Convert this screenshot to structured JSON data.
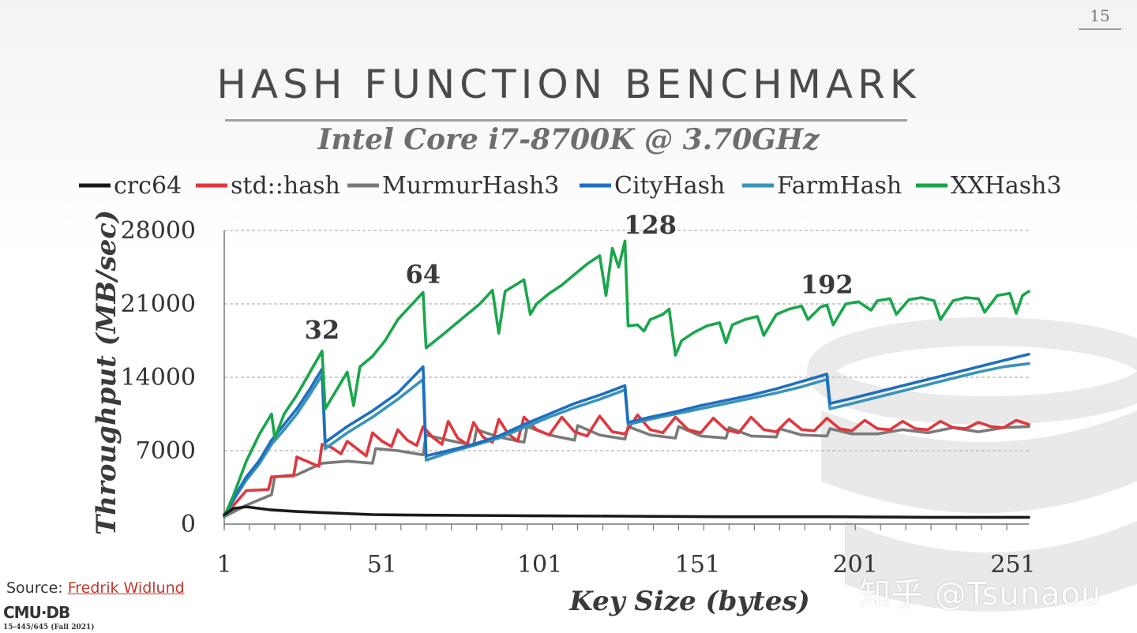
{
  "slide": {
    "page_number": "15",
    "title": "HASH FUNCTION BENCHMARK",
    "subtitle": "Intel Core i7-8700K @ 3.70GHz",
    "source_label": "Source:",
    "source_link": "Fredrik Widlund",
    "logo": "CMU·DB",
    "course": "15-445/645 (Fall 2021)",
    "watermark": "知乎 @Tsunaou"
  },
  "colors": {
    "crc64": "#1a1a1a",
    "std::hash": "#e0383e",
    "MurmurHash3": "#7a7a7a",
    "CityHash": "#1f6fc0",
    "FarmHash": "#3a93b8",
    "XXHash3": "#1aa64b"
  },
  "chart_data": {
    "type": "line",
    "title": "Intel Core i7-8700K @ 3.70GHz",
    "xlabel": "Key Size (bytes)",
    "ylabel": "Throughput (MB/sec)",
    "xlim": [
      1,
      256
    ],
    "ylim": [
      0,
      28000
    ],
    "xticks": [
      1,
      51,
      101,
      151,
      201,
      251
    ],
    "yticks": [
      0,
      7000,
      14000,
      21000,
      28000
    ],
    "legend_position": "top",
    "grid": "horizontal dashed",
    "annotations": [
      {
        "label": "32",
        "x": 32,
        "y": 16500
      },
      {
        "label": "64",
        "x": 64,
        "y": 21800
      },
      {
        "label": "128",
        "x": 136,
        "y": 26500
      },
      {
        "label": "192",
        "x": 192,
        "y": 20800
      }
    ],
    "series": [
      {
        "name": "crc64",
        "points": [
          [
            1,
            900
          ],
          [
            4,
            1500
          ],
          [
            8,
            1650
          ],
          [
            16,
            1350
          ],
          [
            24,
            1200
          ],
          [
            32,
            1100
          ],
          [
            48,
            900
          ],
          [
            64,
            850
          ],
          [
            96,
            800
          ],
          [
            128,
            750
          ],
          [
            160,
            700
          ],
          [
            192,
            700
          ],
          [
            224,
            650
          ],
          [
            256,
            650
          ]
        ]
      },
      {
        "name": "std::hash",
        "points": [
          [
            1,
            800
          ],
          [
            4,
            1800
          ],
          [
            8,
            3200
          ],
          [
            15,
            3300
          ],
          [
            16,
            4500
          ],
          [
            23,
            4600
          ],
          [
            24,
            6400
          ],
          [
            31,
            5500
          ],
          [
            32,
            7600
          ],
          [
            35,
            7300
          ],
          [
            38,
            6700
          ],
          [
            40,
            7900
          ],
          [
            43,
            7200
          ],
          [
            46,
            6500
          ],
          [
            48,
            8700
          ],
          [
            51,
            7900
          ],
          [
            54,
            7400
          ],
          [
            56,
            9000
          ],
          [
            59,
            8000
          ],
          [
            62,
            7500
          ],
          [
            64,
            9300
          ],
          [
            67,
            8300
          ],
          [
            70,
            7600
          ],
          [
            72,
            9800
          ],
          [
            75,
            8200
          ],
          [
            78,
            7600
          ],
          [
            80,
            9700
          ],
          [
            83,
            8300
          ],
          [
            86,
            7800
          ],
          [
            88,
            10000
          ],
          [
            91,
            8600
          ],
          [
            94,
            7900
          ],
          [
            96,
            10200
          ],
          [
            100,
            9000
          ],
          [
            104,
            8500
          ],
          [
            108,
            10200
          ],
          [
            112,
            8800
          ],
          [
            116,
            8400
          ],
          [
            120,
            10300
          ],
          [
            124,
            8800
          ],
          [
            128,
            8600
          ],
          [
            132,
            10400
          ],
          [
            136,
            9000
          ],
          [
            140,
            8700
          ],
          [
            144,
            10200
          ],
          [
            148,
            9000
          ],
          [
            152,
            8700
          ],
          [
            156,
            10100
          ],
          [
            160,
            9000
          ],
          [
            164,
            8700
          ],
          [
            168,
            10200
          ],
          [
            172,
            9000
          ],
          [
            176,
            8800
          ],
          [
            180,
            10000
          ],
          [
            184,
            9000
          ],
          [
            188,
            8900
          ],
          [
            192,
            10100
          ],
          [
            196,
            9100
          ],
          [
            200,
            8900
          ],
          [
            204,
            9900
          ],
          [
            208,
            9100
          ],
          [
            212,
            9000
          ],
          [
            216,
            9800
          ],
          [
            220,
            9100
          ],
          [
            224,
            9000
          ],
          [
            228,
            9800
          ],
          [
            232,
            9200
          ],
          [
            236,
            9100
          ],
          [
            240,
            9700
          ],
          [
            244,
            9300
          ],
          [
            248,
            9200
          ],
          [
            252,
            9900
          ],
          [
            256,
            9500
          ]
        ]
      },
      {
        "name": "MurmurHash3",
        "points": [
          [
            1,
            700
          ],
          [
            8,
            1800
          ],
          [
            16,
            2800
          ],
          [
            17,
            4500
          ],
          [
            24,
            4700
          ],
          [
            32,
            5800
          ],
          [
            40,
            6000
          ],
          [
            48,
            5800
          ],
          [
            49,
            7200
          ],
          [
            56,
            7000
          ],
          [
            64,
            6600
          ],
          [
            65,
            8500
          ],
          [
            72,
            8000
          ],
          [
            80,
            7500
          ],
          [
            81,
            9000
          ],
          [
            88,
            8300
          ],
          [
            96,
            7800
          ],
          [
            97,
            9300
          ],
          [
            104,
            8500
          ],
          [
            112,
            8000
          ],
          [
            113,
            9400
          ],
          [
            120,
            8500
          ],
          [
            128,
            8100
          ],
          [
            129,
            9300
          ],
          [
            136,
            8500
          ],
          [
            144,
            8200
          ],
          [
            145,
            9300
          ],
          [
            152,
            8400
          ],
          [
            160,
            8200
          ],
          [
            161,
            9200
          ],
          [
            168,
            8400
          ],
          [
            176,
            8300
          ],
          [
            177,
            9100
          ],
          [
            184,
            8500
          ],
          [
            192,
            8400
          ],
          [
            193,
            9100
          ],
          [
            200,
            8600
          ],
          [
            208,
            8600
          ],
          [
            216,
            9000
          ],
          [
            224,
            8700
          ],
          [
            232,
            9200
          ],
          [
            240,
            8800
          ],
          [
            248,
            9200
          ],
          [
            256,
            9300
          ]
        ]
      },
      {
        "name": "CityHash",
        "points": [
          [
            1,
            800
          ],
          [
            4,
            2500
          ],
          [
            8,
            4500
          ],
          [
            12,
            6000
          ],
          [
            16,
            8000
          ],
          [
            20,
            9500
          ],
          [
            24,
            11000
          ],
          [
            28,
            12800
          ],
          [
            32,
            14800
          ],
          [
            33,
            7800
          ],
          [
            40,
            9300
          ],
          [
            48,
            10800
          ],
          [
            56,
            12500
          ],
          [
            64,
            15000
          ],
          [
            65,
            6500
          ],
          [
            72,
            7000
          ],
          [
            80,
            7600
          ],
          [
            88,
            8400
          ],
          [
            96,
            9500
          ],
          [
            104,
            10500
          ],
          [
            112,
            11500
          ],
          [
            120,
            12300
          ],
          [
            128,
            13200
          ],
          [
            129,
            9700
          ],
          [
            136,
            10200
          ],
          [
            144,
            10700
          ],
          [
            152,
            11300
          ],
          [
            160,
            11800
          ],
          [
            168,
            12300
          ],
          [
            176,
            12900
          ],
          [
            184,
            13600
          ],
          [
            192,
            14300
          ],
          [
            193,
            11500
          ],
          [
            200,
            12000
          ],
          [
            208,
            12600
          ],
          [
            216,
            13200
          ],
          [
            224,
            13800
          ],
          [
            232,
            14400
          ],
          [
            240,
            15000
          ],
          [
            248,
            15600
          ],
          [
            256,
            16200
          ]
        ]
      },
      {
        "name": "FarmHash",
        "points": [
          [
            1,
            700
          ],
          [
            4,
            2300
          ],
          [
            8,
            4200
          ],
          [
            12,
            5700
          ],
          [
            16,
            7600
          ],
          [
            20,
            9000
          ],
          [
            24,
            10500
          ],
          [
            28,
            12300
          ],
          [
            32,
            14200
          ],
          [
            33,
            7200
          ],
          [
            40,
            8700
          ],
          [
            48,
            10200
          ],
          [
            56,
            11900
          ],
          [
            64,
            13800
          ],
          [
            65,
            6100
          ],
          [
            72,
            6800
          ],
          [
            80,
            7500
          ],
          [
            88,
            8200
          ],
          [
            96,
            9200
          ],
          [
            104,
            10200
          ],
          [
            112,
            11100
          ],
          [
            120,
            11900
          ],
          [
            128,
            12800
          ],
          [
            129,
            9500
          ],
          [
            136,
            10000
          ],
          [
            144,
            10500
          ],
          [
            152,
            11000
          ],
          [
            160,
            11500
          ],
          [
            168,
            12000
          ],
          [
            176,
            12500
          ],
          [
            184,
            13100
          ],
          [
            192,
            13800
          ],
          [
            193,
            11000
          ],
          [
            200,
            11500
          ],
          [
            208,
            12100
          ],
          [
            216,
            12700
          ],
          [
            224,
            13300
          ],
          [
            232,
            13900
          ],
          [
            240,
            14500
          ],
          [
            248,
            15000
          ],
          [
            256,
            15300
          ]
        ]
      },
      {
        "name": "XXHash3",
        "points": [
          [
            1,
            700
          ],
          [
            4,
            2800
          ],
          [
            8,
            6000
          ],
          [
            12,
            8500
          ],
          [
            16,
            10500
          ],
          [
            17,
            8200
          ],
          [
            20,
            10500
          ],
          [
            24,
            12300
          ],
          [
            28,
            14400
          ],
          [
            32,
            16500
          ],
          [
            33,
            11000
          ],
          [
            36,
            12500
          ],
          [
            40,
            14500
          ],
          [
            42,
            11300
          ],
          [
            44,
            15000
          ],
          [
            48,
            16000
          ],
          [
            52,
            17500
          ],
          [
            56,
            19500
          ],
          [
            60,
            20800
          ],
          [
            64,
            22100
          ],
          [
            65,
            16800
          ],
          [
            70,
            18000
          ],
          [
            76,
            19500
          ],
          [
            82,
            21000
          ],
          [
            86,
            22300
          ],
          [
            88,
            18200
          ],
          [
            90,
            22200
          ],
          [
            96,
            23300
          ],
          [
            98,
            20000
          ],
          [
            100,
            21000
          ],
          [
            104,
            22000
          ],
          [
            108,
            22800
          ],
          [
            112,
            23800
          ],
          [
            116,
            24800
          ],
          [
            120,
            25600
          ],
          [
            122,
            21800
          ],
          [
            124,
            26300
          ],
          [
            126,
            24500
          ],
          [
            128,
            27000
          ],
          [
            129,
            18900
          ],
          [
            132,
            19000
          ],
          [
            134,
            18400
          ],
          [
            136,
            19500
          ],
          [
            140,
            20000
          ],
          [
            142,
            20500
          ],
          [
            144,
            16100
          ],
          [
            146,
            17500
          ],
          [
            150,
            18300
          ],
          [
            154,
            18900
          ],
          [
            158,
            19200
          ],
          [
            160,
            17300
          ],
          [
            162,
            19000
          ],
          [
            166,
            19500
          ],
          [
            170,
            19800
          ],
          [
            172,
            18000
          ],
          [
            176,
            20000
          ],
          [
            180,
            20500
          ],
          [
            184,
            20800
          ],
          [
            186,
            19500
          ],
          [
            190,
            20700
          ],
          [
            192,
            20900
          ],
          [
            194,
            19000
          ],
          [
            198,
            21000
          ],
          [
            202,
            21200
          ],
          [
            206,
            20400
          ],
          [
            208,
            21300
          ],
          [
            212,
            21500
          ],
          [
            214,
            20000
          ],
          [
            218,
            21400
          ],
          [
            222,
            21600
          ],
          [
            226,
            21300
          ],
          [
            228,
            19500
          ],
          [
            232,
            21300
          ],
          [
            236,
            21600
          ],
          [
            240,
            21500
          ],
          [
            242,
            20200
          ],
          [
            246,
            21800
          ],
          [
            250,
            22000
          ],
          [
            252,
            20100
          ],
          [
            254,
            21800
          ],
          [
            256,
            22200
          ]
        ]
      }
    ]
  }
}
